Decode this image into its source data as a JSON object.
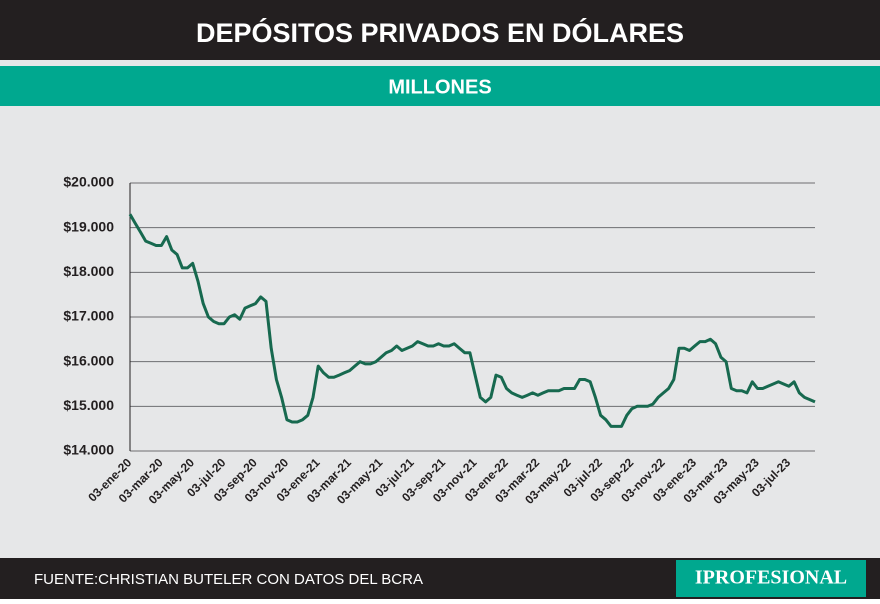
{
  "chart_data": {
    "type": "line",
    "title": "DEPÓSITOS PRIVADOS EN DÓLARES",
    "subtitle": "MILLONES",
    "source": "FUENTE:CHRISTIAN BUTELER CON DATOS DEL BCRA",
    "brand": "IPROFESIONAL",
    "categories": [
      "03-ene-20",
      null,
      null,
      null,
      null,
      null,
      "03-mar-20",
      null,
      null,
      null,
      null,
      null,
      "03-may-20",
      null,
      null,
      null,
      null,
      null,
      "03-jul-20",
      null,
      null,
      null,
      null,
      null,
      "03-sep-20",
      null,
      null,
      null,
      null,
      null,
      "03-nov-20",
      null,
      null,
      null,
      null,
      null,
      "03-ene-21",
      null,
      null,
      null,
      null,
      null,
      "03-mar-21",
      null,
      null,
      null,
      null,
      null,
      "03-may-21",
      null,
      null,
      null,
      null,
      null,
      "03-jul-21",
      null,
      null,
      null,
      null,
      null,
      "03-sep-21",
      null,
      null,
      null,
      null,
      null,
      "03-nov-21",
      null,
      null,
      null,
      null,
      null,
      "03-ene-22",
      null,
      null,
      null,
      null,
      null,
      "03-mar-22",
      null,
      null,
      null,
      null,
      null,
      "03-may-22",
      null,
      null,
      null,
      null,
      null,
      "03-jul-22",
      null,
      null,
      null,
      null,
      null,
      "03-sep-22",
      null,
      null,
      null,
      null,
      null,
      "03-nov-22",
      null,
      null,
      null,
      null,
      null,
      "03-ene-23",
      null,
      null,
      null,
      null,
      null,
      "03-mar-23",
      null,
      null,
      null,
      null,
      null,
      "03-may-23",
      null,
      null,
      null,
      null,
      null,
      "03-jul-23",
      null,
      null,
      null,
      null,
      null
    ],
    "series": [
      {
        "color": "#17694f",
        "values": [
          19300,
          19100,
          18900,
          18700,
          18650,
          18600,
          18600,
          18800,
          18500,
          18400,
          18100,
          18100,
          18200,
          17800,
          17300,
          17000,
          16900,
          16850,
          16850,
          17000,
          17050,
          16950,
          17200,
          17250,
          17300,
          17450,
          17350,
          16300,
          15600,
          15200,
          14700,
          14650,
          14650,
          14700,
          14800,
          15200,
          15900,
          15750,
          15650,
          15650,
          15700,
          15750,
          15800,
          15900,
          16000,
          15950,
          15950,
          16000,
          16100,
          16200,
          16250,
          16350,
          16250,
          16300,
          16350,
          16450,
          16400,
          16350,
          16350,
          16400,
          16350,
          16350,
          16400,
          16300,
          16200,
          16200,
          15700,
          15200,
          15100,
          15200,
          15700,
          15650,
          15400,
          15300,
          15250,
          15200,
          15250,
          15300,
          15250,
          15300,
          15350,
          15350,
          15350,
          15400,
          15400,
          15400,
          15600,
          15600,
          15550,
          15200,
          14800,
          14700,
          14550,
          14550,
          14550,
          14800,
          14950,
          15000,
          15000,
          15000,
          15050,
          15200,
          15300,
          15400,
          15600,
          16300,
          16300,
          16250,
          16350,
          16450,
          16450,
          16500,
          16400,
          16100,
          16000,
          15400,
          15350,
          15350,
          15300,
          15550,
          15400,
          15400,
          15450,
          15500,
          15550,
          15500,
          15450,
          15550,
          15300,
          15200,
          15150,
          15100
        ]
      }
    ],
    "ylim": [
      14000,
      20000
    ],
    "yticks": [
      {
        "value": 14000,
        "label": "$14.000"
      },
      {
        "value": 15000,
        "label": "$15.000"
      },
      {
        "value": 16000,
        "label": "$16.000"
      },
      {
        "value": 17000,
        "label": "$17.000"
      },
      {
        "value": 18000,
        "label": "$18.000"
      },
      {
        "value": 19000,
        "label": "$19.000"
      },
      {
        "value": 20000,
        "label": "$20.000"
      }
    ],
    "grid": true
  }
}
